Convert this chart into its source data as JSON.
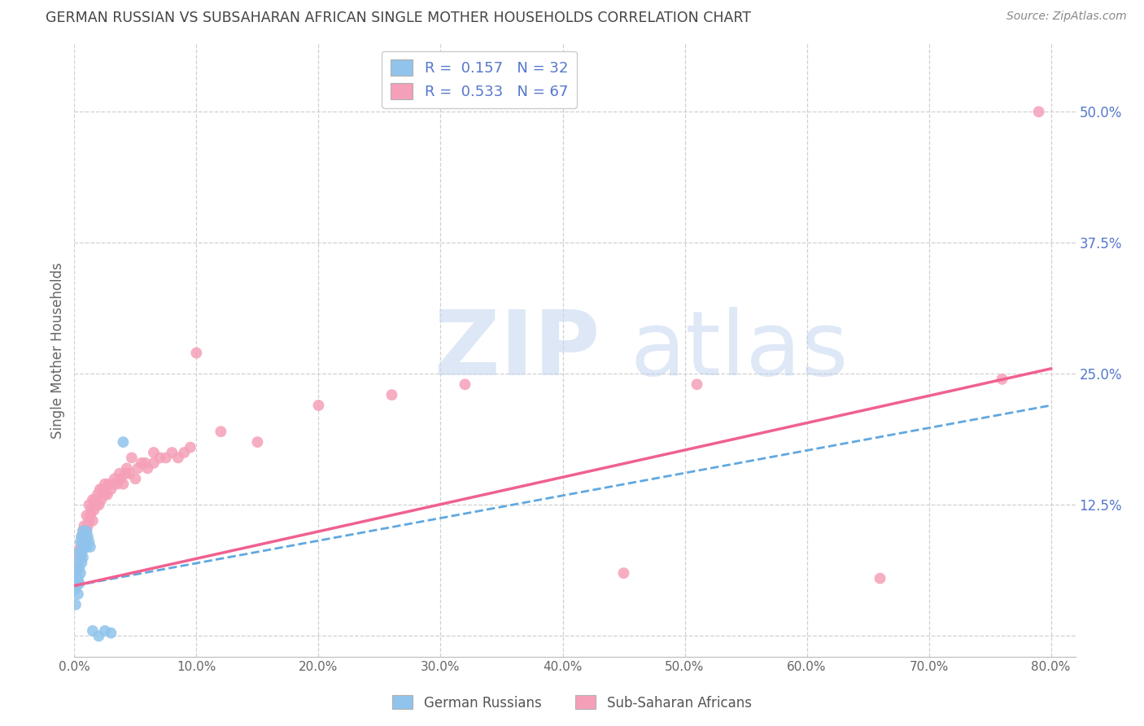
{
  "title": "GERMAN RUSSIAN VS SUBSAHARAN AFRICAN SINGLE MOTHER HOUSEHOLDS CORRELATION CHART",
  "source": "Source: ZipAtlas.com",
  "ylabel": "Single Mother Households",
  "xlim": [
    0.0,
    0.82
  ],
  "ylim": [
    -0.02,
    0.565
  ],
  "right_yticks": [
    0.0,
    0.125,
    0.25,
    0.375,
    0.5
  ],
  "right_yticklabels": [
    "",
    "12.5%",
    "25.0%",
    "37.5%",
    "50.0%"
  ],
  "xticks": [
    0.0,
    0.1,
    0.2,
    0.3,
    0.4,
    0.5,
    0.6,
    0.7,
    0.8
  ],
  "xticklabels": [
    "0.0%",
    "10.0%",
    "20.0%",
    "30.0%",
    "40.0%",
    "50.0%",
    "60.0%",
    "70.0%",
    "80.0%"
  ],
  "blue_color": "#90c4ec",
  "pink_color": "#f5a0b8",
  "blue_trend_color": "#60a8e0",
  "pink_trend_color": "#f06090",
  "axis_color": "#5577cc",
  "title_color": "#444444",
  "grid_color": "#d0d0d0",
  "legend_R_blue": "0.157",
  "legend_N_blue": "32",
  "legend_R_pink": "0.533",
  "legend_N_pink": "67",
  "blue_x": [
    0.001,
    0.001,
    0.002,
    0.002,
    0.003,
    0.003,
    0.003,
    0.004,
    0.004,
    0.004,
    0.005,
    0.005,
    0.005,
    0.006,
    0.006,
    0.006,
    0.007,
    0.007,
    0.007,
    0.008,
    0.008,
    0.009,
    0.01,
    0.01,
    0.011,
    0.012,
    0.013,
    0.015,
    0.02,
    0.025,
    0.03,
    0.04
  ],
  "blue_y": [
    0.03,
    0.045,
    0.05,
    0.06,
    0.04,
    0.055,
    0.07,
    0.05,
    0.065,
    0.08,
    0.06,
    0.075,
    0.09,
    0.07,
    0.08,
    0.095,
    0.075,
    0.09,
    0.1,
    0.085,
    0.095,
    0.09,
    0.085,
    0.1,
    0.095,
    0.09,
    0.085,
    0.005,
    0.0,
    0.005,
    0.003,
    0.185
  ],
  "pink_x": [
    0.002,
    0.003,
    0.004,
    0.005,
    0.006,
    0.006,
    0.007,
    0.007,
    0.008,
    0.008,
    0.009,
    0.01,
    0.01,
    0.011,
    0.012,
    0.012,
    0.013,
    0.014,
    0.015,
    0.015,
    0.016,
    0.017,
    0.018,
    0.019,
    0.02,
    0.021,
    0.022,
    0.023,
    0.025,
    0.025,
    0.027,
    0.028,
    0.03,
    0.032,
    0.033,
    0.035,
    0.037,
    0.038,
    0.04,
    0.042,
    0.043,
    0.045,
    0.047,
    0.05,
    0.052,
    0.055,
    0.058,
    0.06,
    0.065,
    0.065,
    0.07,
    0.075,
    0.08,
    0.085,
    0.09,
    0.095,
    0.1,
    0.12,
    0.15,
    0.2,
    0.26,
    0.32,
    0.45,
    0.51,
    0.66,
    0.76,
    0.79
  ],
  "pink_y": [
    0.065,
    0.08,
    0.075,
    0.085,
    0.08,
    0.095,
    0.085,
    0.1,
    0.09,
    0.105,
    0.095,
    0.1,
    0.115,
    0.105,
    0.11,
    0.125,
    0.115,
    0.12,
    0.11,
    0.13,
    0.12,
    0.13,
    0.125,
    0.135,
    0.125,
    0.14,
    0.13,
    0.14,
    0.135,
    0.145,
    0.135,
    0.145,
    0.14,
    0.145,
    0.15,
    0.145,
    0.155,
    0.15,
    0.145,
    0.155,
    0.16,
    0.155,
    0.17,
    0.15,
    0.16,
    0.165,
    0.165,
    0.16,
    0.165,
    0.175,
    0.17,
    0.17,
    0.175,
    0.17,
    0.175,
    0.18,
    0.27,
    0.195,
    0.185,
    0.22,
    0.23,
    0.24,
    0.06,
    0.24,
    0.055,
    0.245,
    0.5
  ],
  "blue_trend_x": [
    0.0,
    0.8
  ],
  "blue_trend_y": [
    0.048,
    0.22
  ],
  "pink_trend_x": [
    0.0,
    0.8
  ],
  "pink_trend_y": [
    0.048,
    0.255
  ]
}
